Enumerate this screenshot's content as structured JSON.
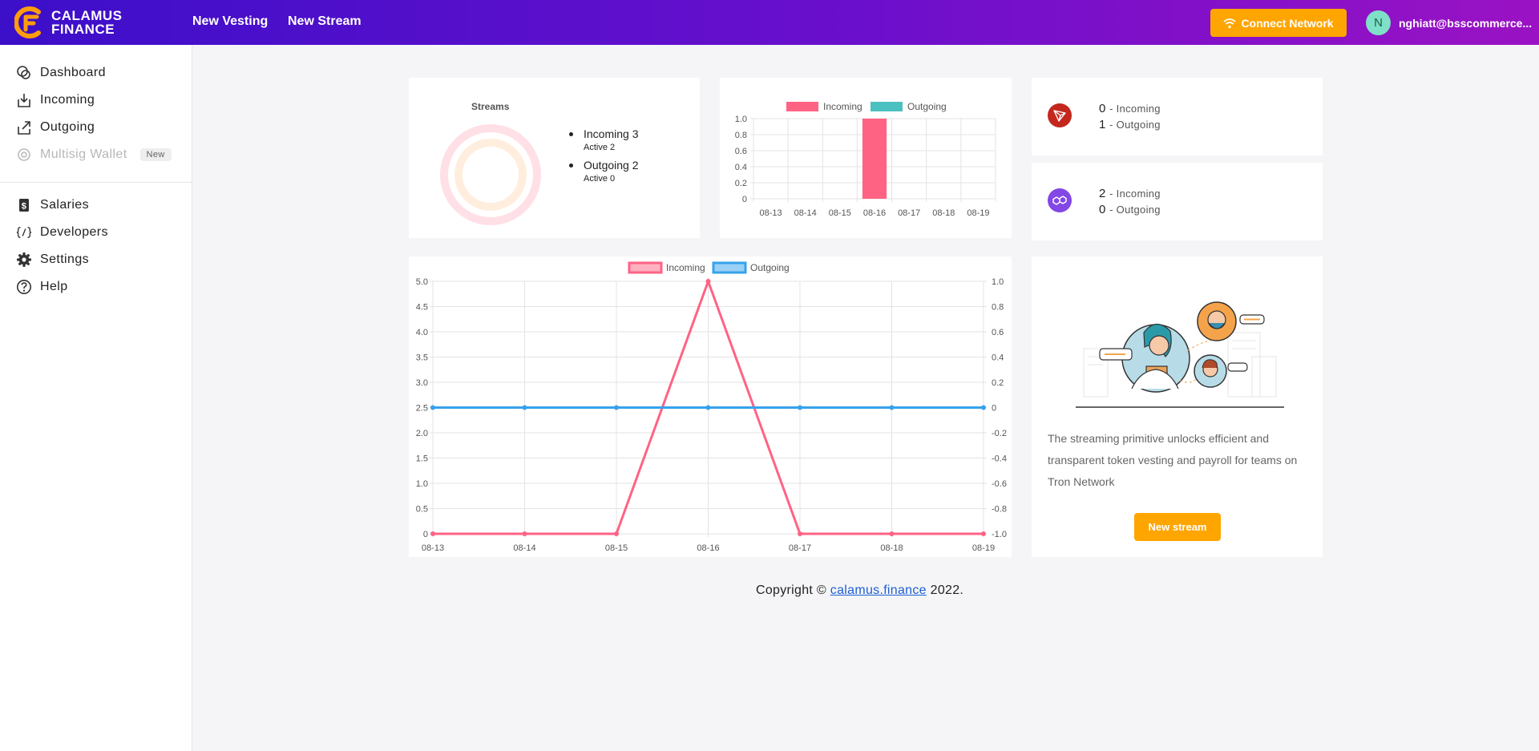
{
  "header": {
    "logo_line1": "CALAMUS",
    "logo_line2": "FINANCE",
    "nav": [
      "New Vesting",
      "New Stream"
    ],
    "connect_label": "Connect Network",
    "avatar_initial": "N",
    "user_email": "nghiatt@bsscommerce..."
  },
  "sidebar": {
    "items": [
      {
        "label": "Dashboard",
        "icon": "dashboard-icon"
      },
      {
        "label": "Incoming",
        "icon": "incoming-icon"
      },
      {
        "label": "Outgoing",
        "icon": "outgoing-icon"
      },
      {
        "label": "Multisig Wallet",
        "icon": "multisig-icon",
        "badge": "New",
        "disabled": true
      }
    ],
    "items2": [
      {
        "label": "Salaries",
        "icon": "salaries-icon"
      },
      {
        "label": "Developers",
        "icon": "developers-icon"
      },
      {
        "label": "Settings",
        "icon": "gear-icon"
      },
      {
        "label": "Help",
        "icon": "help-icon"
      }
    ]
  },
  "streams_card": {
    "title": "Streams",
    "items": [
      {
        "label": "Incoming 3",
        "sub": "Active 2"
      },
      {
        "label": "Outgoing 2",
        "sub": "Active 0"
      }
    ]
  },
  "networks": {
    "tron": {
      "incoming": "0",
      "incoming_label": "- Incoming",
      "outgoing": "1",
      "outgoing_label": "- Outgoing",
      "color": "#c4271d"
    },
    "polygon": {
      "incoming": "2",
      "incoming_label": "- Incoming",
      "outgoing": "0",
      "outgoing_label": "- Outgoing",
      "color": "#8247e5"
    }
  },
  "promo": {
    "text": "The streaming primitive unlocks efficient and transparent token vesting and payroll for teams on Tron Network",
    "button": "New stream"
  },
  "footer": {
    "prefix": "Copyright ©",
    "link": "calamus.finance",
    "suffix": "2022."
  },
  "chart_data": [
    {
      "type": "bar",
      "categories": [
        "08-13",
        "08-14",
        "08-15",
        "08-16",
        "08-17",
        "08-18",
        "08-19"
      ],
      "series": [
        {
          "name": "Incoming",
          "values": [
            0,
            0,
            0,
            1,
            0,
            0,
            0
          ],
          "color": "#ff6384"
        },
        {
          "name": "Outgoing",
          "values": [
            0,
            0,
            0,
            0,
            0,
            0,
            0
          ],
          "color": "#4bc0c0"
        }
      ],
      "ylim": [
        0,
        1
      ],
      "yticks": [
        "1.0",
        "0.8",
        "0.6",
        "0.4",
        "0.2",
        "0"
      ],
      "legend": "top"
    },
    {
      "type": "line",
      "categories": [
        "08-13",
        "08-14",
        "08-15",
        "08-16",
        "08-17",
        "08-18",
        "08-19"
      ],
      "series": [
        {
          "name": "Incoming",
          "values": [
            0,
            0,
            0,
            5,
            0,
            0,
            0
          ],
          "color": "#ff6384",
          "axis": "left"
        },
        {
          "name": "Outgoing",
          "values": [
            0,
            0,
            0,
            0,
            0,
            0,
            0
          ],
          "color": "#36a2eb",
          "axis": "right"
        }
      ],
      "ylim_left": [
        0,
        5
      ],
      "yticks_left": [
        "5.0",
        "4.5",
        "4.0",
        "3.5",
        "3.0",
        "2.5",
        "2.0",
        "1.5",
        "1.0",
        "0.5",
        "0"
      ],
      "ylim_right": [
        -1,
        1
      ],
      "yticks_right": [
        "1.0",
        "0.8",
        "0.6",
        "0.4",
        "0.2",
        "0",
        "-0.2",
        "-0.4",
        "-0.6",
        "-0.8",
        "-1.0"
      ],
      "legend": "top"
    }
  ]
}
